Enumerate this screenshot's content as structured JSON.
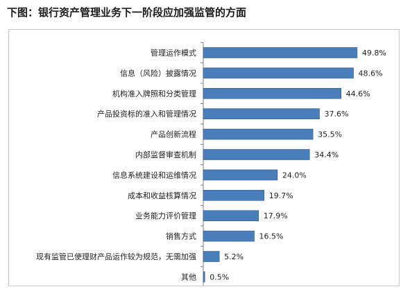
{
  "page": {
    "title": "下图：银行资产管理业务下一阶段应加强监管的方面"
  },
  "chart_data": {
    "type": "bar",
    "orientation": "horizontal",
    "title": "",
    "xlabel": "",
    "ylabel": "",
    "xlim": [
      0,
      55
    ],
    "grid": false,
    "legend": "none",
    "bar_color": "#4a7ebb",
    "bar_edge_color": "#2f5a8f",
    "categories": [
      "管理运作模式",
      "信息（风险）披露情况",
      "机构准入牌照和分类管理",
      "产品投资标的准入和管理情况",
      "产品创新流程",
      "内部监督审查机制",
      "信息系统建设和运维情况",
      "成本和收益核算情况",
      "业务能力评价管理",
      "销售方式",
      "现有监管已使理财产品运作较为规范，无需加强",
      "其他"
    ],
    "values": [
      49.8,
      48.6,
      44.6,
      37.6,
      35.5,
      34.4,
      24.0,
      19.7,
      17.9,
      16.5,
      5.2,
      0.5
    ],
    "value_labels": [
      "49.8%",
      "48.6%",
      "44.6%",
      "37.6%",
      "35.5%",
      "34.4%",
      "24.0%",
      "19.7%",
      "17.9%",
      "16.5%",
      "5.2%",
      "0.5%"
    ]
  }
}
